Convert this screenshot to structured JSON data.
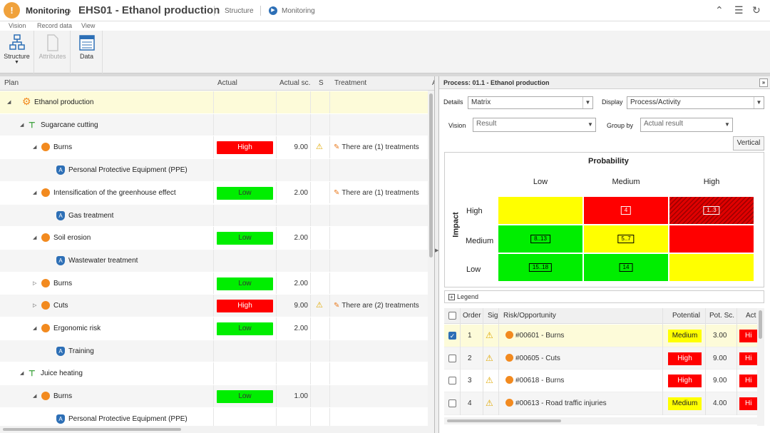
{
  "header": {
    "logo_glyph": "!",
    "crumb": "Monitoring",
    "crumb_sep": "›",
    "title": "EHS01 - Ethanol production",
    "link_structure": "Structure",
    "link_monitoring": "Monitoring",
    "icons": [
      "collapse-icon",
      "list-icon",
      "refresh-icon"
    ]
  },
  "menu": {
    "tabs": [
      "Vision",
      "Record data",
      "View"
    ]
  },
  "ribbon": {
    "structure_label": "Structure",
    "attributes_label": "Attributes",
    "data_label": "Data"
  },
  "grid": {
    "headers": {
      "plan": "Plan",
      "actual": "Actual",
      "actual_sc": "Actual sc.",
      "s": "S",
      "treatment": "Treatment",
      "a": "A"
    },
    "rows": [
      {
        "label": "Ethanol production",
        "level": 0,
        "kind": "process",
        "toggle": "◢",
        "selected": true
      },
      {
        "label": "Sugarcane cutting",
        "level": 1,
        "kind": "step",
        "toggle": "◢"
      },
      {
        "label": "Burns",
        "level": 2,
        "kind": "risk",
        "toggle": "◢",
        "badge": "High",
        "score": "9.00",
        "warn": true,
        "treatment": "There are (1) treatments"
      },
      {
        "label": "Personal Protective Equipment (PPE)",
        "level": 3,
        "kind": "ppe"
      },
      {
        "label": "Intensification of the greenhouse effect",
        "level": 2,
        "kind": "risk",
        "toggle": "◢",
        "badge": "Low",
        "score": "2.00",
        "treatment": "There are (1) treatments"
      },
      {
        "label": "Gas treatment",
        "level": 3,
        "kind": "ppe"
      },
      {
        "label": "Soil erosion",
        "level": 2,
        "kind": "risk",
        "toggle": "◢",
        "badge": "Low",
        "score": "2.00"
      },
      {
        "label": "Wastewater treatment",
        "level": 3,
        "kind": "ppe"
      },
      {
        "label": "Burns",
        "level": 2,
        "kind": "risk",
        "toggle": "▷",
        "badge": "Low",
        "score": "2.00"
      },
      {
        "label": "Cuts",
        "level": 2,
        "kind": "risk",
        "toggle": "▷",
        "badge": "High",
        "score": "9.00",
        "warn": true,
        "treatment": "There are (2) treatments"
      },
      {
        "label": "Ergonomic risk",
        "level": 2,
        "kind": "risk",
        "toggle": "◢",
        "badge": "Low",
        "score": "2.00"
      },
      {
        "label": "Training",
        "level": 3,
        "kind": "ppe"
      },
      {
        "label": "Juice heating",
        "level": 1,
        "kind": "step",
        "toggle": "◢"
      },
      {
        "label": "Burns",
        "level": 2,
        "kind": "risk",
        "toggle": "◢",
        "badge": "Low",
        "score": "1.00"
      },
      {
        "label": "Personal Protective Equipment (PPE)",
        "level": 3,
        "kind": "ppe"
      }
    ]
  },
  "panel": {
    "title": "Process: 01.1 - Ethanol production",
    "close_glyph": "»",
    "details_label": "Details",
    "details_value": "Matrix",
    "display_label": "Display",
    "display_value": "Process/Activity",
    "vision_label": "Vision",
    "vision_value": "Result",
    "groupby_label": "Group by",
    "groupby_value": "Actual result",
    "vertical_label": "Vertical",
    "matrix": {
      "probability_label": "Probability",
      "impact_label": "Impact",
      "columns": [
        "Low",
        "Medium",
        "High"
      ],
      "rows": [
        "High",
        "Medium",
        "Low"
      ],
      "cells": [
        [
          {
            "color": "yellow",
            "tag": ""
          },
          {
            "color": "red",
            "tag": "4"
          },
          {
            "color": "hatched-red",
            "tag": "1..3"
          }
        ],
        [
          {
            "color": "green",
            "tag": "8..13"
          },
          {
            "color": "yellow",
            "tag": "5..7"
          },
          {
            "color": "red",
            "tag": ""
          }
        ],
        [
          {
            "color": "green",
            "tag": "15..18"
          },
          {
            "color": "green",
            "tag": "14"
          },
          {
            "color": "yellow",
            "tag": ""
          }
        ]
      ]
    },
    "legend_label": "Legend",
    "legend_toggle": "+",
    "table": {
      "headers": {
        "order": "Order",
        "sig": "Sig",
        "risk": "Risk/Opportunity",
        "potential": "Potential",
        "pot_sc": "Pot. Sc.",
        "act": "Act"
      },
      "rows": [
        {
          "checked": true,
          "order": "1",
          "risk": "#00601 - Burns",
          "potential": "Medium",
          "pot_sc": "3.00",
          "act": "Hi"
        },
        {
          "checked": false,
          "order": "2",
          "risk": "#00605 - Cuts",
          "potential": "High",
          "pot_sc": "9.00",
          "act": "Hi"
        },
        {
          "checked": false,
          "order": "3",
          "risk": "#00618 - Burns",
          "potential": "High",
          "pot_sc": "9.00",
          "act": "Hi"
        },
        {
          "checked": false,
          "order": "4",
          "risk": "#00613 - Road traffic injuries",
          "potential": "Medium",
          "pot_sc": "4.00",
          "act": "Hi"
        }
      ]
    }
  },
  "colors": {
    "accent": "#2d6fb6",
    "high": "#ff0000",
    "low": "#00ee00",
    "medium": "#ffff00",
    "brand": "#f0a23c"
  }
}
